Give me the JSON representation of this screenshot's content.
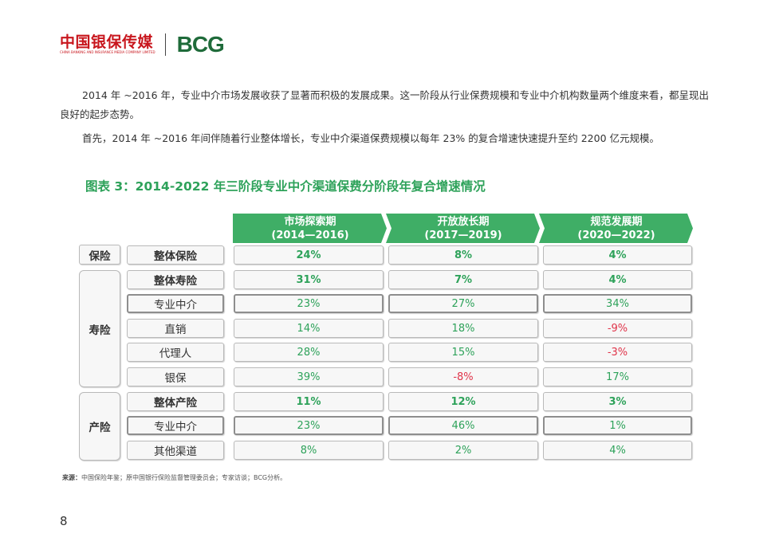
{
  "header": {
    "brand_cn": "中国银保传媒",
    "brand_en": "CHINA BANKING AND INSURANCE MEDIA COMPANY LIMITED",
    "brand_bcg": "BCG"
  },
  "paragraphs": [
    "2014 年 ~2016 年，专业中介市场发展收获了显著而积极的发展成果。这一阶段从行业保费规模和专业中介机构数量两个维度来看，都呈现出良好的起步态势。",
    "首先，2014 年 ~2016 年间伴随着行业整体增长，专业中介渠道保费规模以每年 23% 的复合增速快速提升至约 2200 亿元规模。"
  ],
  "figure": {
    "title": "图表 3：2014-2022 年三阶段专业中介渠道保费分阶段年复合增速情况",
    "phases": [
      {
        "name": "市场探索期",
        "years": "(2014—2016)"
      },
      {
        "name": "开放放长期",
        "years": "(2017—2019)"
      },
      {
        "name": "规范发展期",
        "years": "(2020—2022)"
      }
    ],
    "groups": {
      "insurance": "保险",
      "life": "寿险",
      "property": "产险"
    },
    "rows": [
      {
        "label": "整体保险",
        "values": [
          "24%",
          "8%",
          "4%"
        ]
      },
      {
        "label": "整体寿险",
        "values": [
          "31%",
          "7%",
          "4%"
        ]
      },
      {
        "label": "专业中介",
        "values": [
          "23%",
          "27%",
          "34%"
        ]
      },
      {
        "label": "直销",
        "values": [
          "14%",
          "18%",
          "-9%"
        ]
      },
      {
        "label": "代理人",
        "values": [
          "28%",
          "15%",
          "-3%"
        ]
      },
      {
        "label": "银保",
        "values": [
          "39%",
          "-8%",
          "17%"
        ]
      },
      {
        "label": "整体产险",
        "values": [
          "11%",
          "12%",
          "3%"
        ]
      },
      {
        "label": "专业中介",
        "values": [
          "23%",
          "46%",
          "1%"
        ]
      },
      {
        "label": "其他渠道",
        "values": [
          "8%",
          "2%",
          "4%"
        ]
      }
    ],
    "colors": {
      "green": "#2ea25a",
      "red": "#e0344a",
      "phase_green": "#3fae66"
    }
  },
  "source": {
    "label": "来源：",
    "text": "中国保险年鉴；原中国银行保险监督管理委员会；专家访谈；BCG分析。"
  },
  "page_number": "8"
}
